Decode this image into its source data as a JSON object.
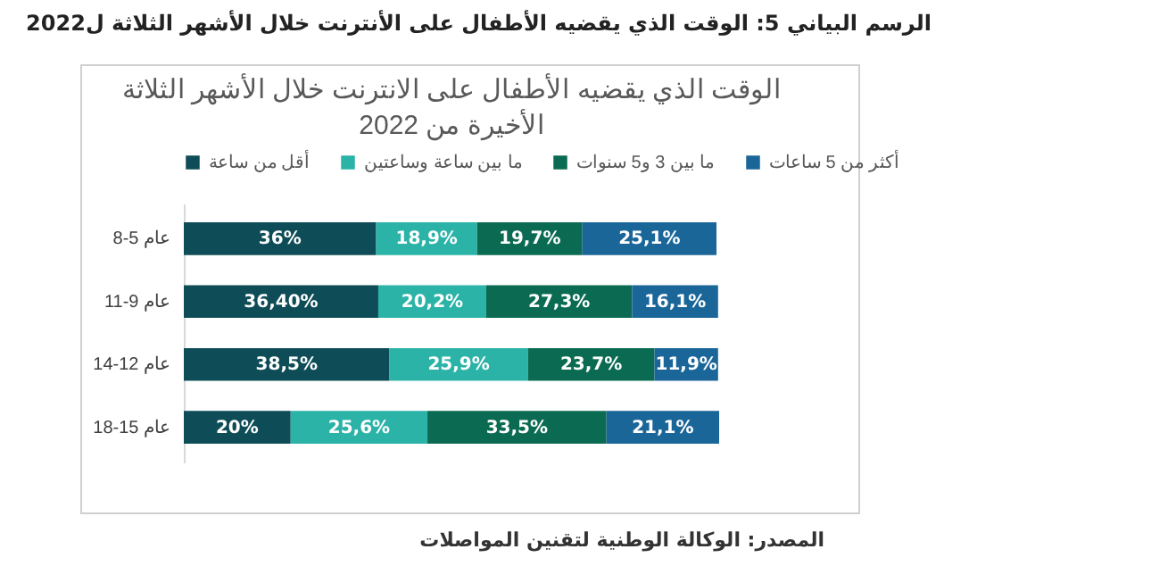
{
  "chart_data": {
    "type": "bar",
    "orientation": "horizontal",
    "stacked": true,
    "title": "الرسم البياني 5: الوقت الذي يقضيه الأطفال على الأنترنت خلال الأشهر الثلاثة ل2022",
    "subtitle": "الوقت الذي يقضيه الأطفال على الانترنت خلال الأشهر الثلاثة\nالأخيرة من 2022",
    "annotations": [
      "المصدر: الوكالة الوطنية لتقنين المواصلات"
    ],
    "categories": [
      "8-5 عام",
      "11-9 عام",
      "14-12 عام",
      "18-15 عام"
    ],
    "legend": "top",
    "grid": false,
    "series": [
      {
        "name": "أقل من ساعة",
        "color": "#0e4c57",
        "values": [
          36,
          36.4,
          38.5,
          20
        ],
        "value_labels": [
          "36%",
          "36,40%",
          "38,5%",
          "20%"
        ]
      },
      {
        "name": "ما بين ساعة وساعتين",
        "color": "#2bb3a8",
        "values": [
          18.9,
          20.2,
          25.9,
          25.6
        ],
        "value_labels": [
          "18,9%",
          "20,2%",
          "25,9%",
          "25,6%"
        ]
      },
      {
        "name": "ما بين 3 و5 سنوات",
        "color": "#0b6b52",
        "values": [
          19.7,
          27.3,
          23.7,
          33.5
        ],
        "value_labels": [
          "19,7%",
          "27,3%",
          "23,7%",
          "33,5%"
        ]
      },
      {
        "name": "أكثر من 5 ساعات",
        "color": "#1b6699",
        "values": [
          25.1,
          16.1,
          11.9,
          21.1
        ],
        "value_labels": [
          "25,1%",
          "16,1%",
          "11,9%",
          "21,1%"
        ]
      }
    ]
  }
}
